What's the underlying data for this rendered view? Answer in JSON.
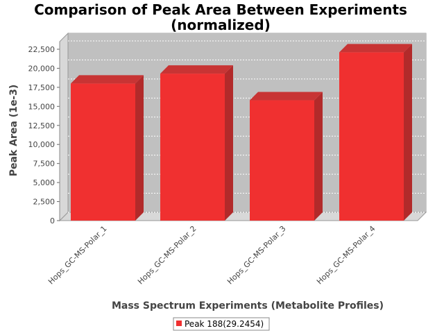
{
  "colors": {
    "bar_front": "#f03030",
    "bar_side": "#b22a2a",
    "bar_top": "#c83434",
    "plot_bg": "#c0c0c0",
    "plot_wall": "#d8d8d8"
  },
  "chart_data": {
    "type": "bar",
    "title": [
      "Comparison of Peak Area Between Experiments",
      "(normalized)"
    ],
    "xlabel": "Mass Spectrum Experiments (Metabolite Profiles)",
    "ylabel": "Peak Area (1e-3)",
    "categories": [
      "Hops_GC-MS-Polar_1",
      "Hops_GC-MS-Polar_2",
      "Hops_GC-MS-Polar_3",
      "Hops_GC-MS-Polar_4"
    ],
    "series": [
      {
        "name": "Peak 188(29.2454)",
        "values": [
          18000,
          19300,
          15800,
          22100
        ]
      }
    ],
    "ylim": [
      0,
      23500
    ],
    "yticks": [
      0,
      2500,
      5000,
      7500,
      10000,
      12500,
      15000,
      17500,
      20000,
      22500
    ],
    "ytick_labels": [
      "0",
      "2,500",
      "5,000",
      "7,500",
      "10,000",
      "12,500",
      "15,000",
      "17,500",
      "20,000",
      "22,500"
    ],
    "grid": true,
    "legend": "bottom-center",
    "style": "3d"
  }
}
